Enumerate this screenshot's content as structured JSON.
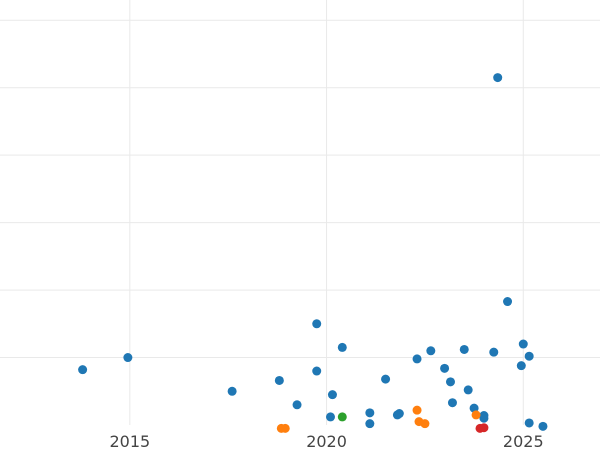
{
  "chart_data": {
    "type": "scatter",
    "title": "",
    "xlabel": "",
    "ylabel": "",
    "xlim": [
      2011.7,
      2026.95
    ],
    "ylim": [
      0,
      6.3
    ],
    "x_ticks": [
      {
        "value": 2015,
        "label": "2015"
      },
      {
        "value": 2020,
        "label": "2020"
      },
      {
        "value": 2025,
        "label": "2025"
      }
    ],
    "y_gridlines": [
      1,
      2,
      3,
      4,
      5,
      6
    ],
    "grid": true,
    "legend": "none",
    "series": [
      {
        "color": "#1f77b4",
        "points": [
          [
            2013.8,
            0.82
          ],
          [
            2014.95,
            1.0
          ],
          [
            2017.6,
            0.5
          ],
          [
            2018.8,
            0.66
          ],
          [
            2019.25,
            0.3
          ],
          [
            2019.75,
            0.8
          ],
          [
            2019.75,
            1.5
          ],
          [
            2020.1,
            0.12
          ],
          [
            2020.15,
            0.45
          ],
          [
            2020.4,
            1.15
          ],
          [
            2021.1,
            0.18
          ],
          [
            2021.1,
            0.02
          ],
          [
            2021.5,
            0.68
          ],
          [
            2021.8,
            0.15
          ],
          [
            2021.85,
            0.17
          ],
          [
            2022.3,
            0.98
          ],
          [
            2022.65,
            1.1
          ],
          [
            2023.0,
            0.84
          ],
          [
            2023.15,
            0.64
          ],
          [
            2023.2,
            0.33
          ],
          [
            2023.5,
            1.12
          ],
          [
            2023.6,
            0.52
          ],
          [
            2023.75,
            0.25
          ],
          [
            2024.0,
            0.14
          ],
          [
            2024.0,
            0.1
          ],
          [
            2024.25,
            1.08
          ],
          [
            2024.35,
            5.15
          ],
          [
            2024.6,
            1.83
          ],
          [
            2024.95,
            0.88
          ],
          [
            2025.0,
            1.2
          ],
          [
            2025.15,
            1.02
          ],
          [
            2025.15,
            0.03
          ],
          [
            2025.5,
            -0.02
          ]
        ]
      },
      {
        "color": "#ff7f0e",
        "points": [
          [
            2018.85,
            -0.05
          ],
          [
            2018.95,
            -0.05
          ],
          [
            2022.3,
            0.22
          ],
          [
            2022.35,
            0.05
          ],
          [
            2022.5,
            0.02
          ],
          [
            2023.8,
            0.15
          ]
        ]
      },
      {
        "color": "#2ca02c",
        "points": [
          [
            2020.4,
            0.12
          ]
        ]
      },
      {
        "color": "#d62728",
        "points": [
          [
            2023.9,
            -0.05
          ],
          [
            2024.0,
            -0.04
          ]
        ]
      }
    ]
  }
}
